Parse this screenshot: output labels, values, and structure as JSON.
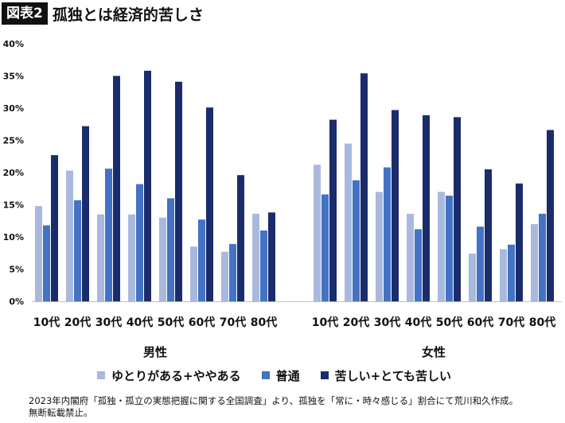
{
  "header": {
    "figure_label": "図表2",
    "title": "孤独とは経済的苦しさ"
  },
  "colors": {
    "low": "#a9b9de",
    "mid": "#4472c4",
    "high": "#1a2c6b"
  },
  "chart_data": {
    "type": "bar",
    "ylim": [
      0,
      40
    ],
    "yticks": [
      "0%",
      "5%",
      "10%",
      "15%",
      "20%",
      "25%",
      "30%",
      "35%",
      "40%"
    ],
    "grid": false,
    "legend_position": "bottom",
    "groups": [
      {
        "label": "男性",
        "categories": [
          "10代",
          "20代",
          "30代",
          "40代",
          "50代",
          "60代",
          "70代",
          "80代"
        ],
        "series": [
          {
            "name": "ゆとりがある+ややある",
            "values": [
              14.8,
              20.3,
              13.5,
              13.5,
              13.0,
              8.5,
              7.7,
              13.6
            ]
          },
          {
            "name": "普通",
            "values": [
              11.8,
              15.7,
              20.6,
              18.2,
              16.0,
              12.7,
              8.9,
              11.0
            ]
          },
          {
            "name": "苦しい+とても苦しい",
            "values": [
              22.7,
              27.2,
              35.0,
              35.8,
              34.1,
              30.1,
              19.6,
              13.8
            ]
          }
        ]
      },
      {
        "label": "女性",
        "categories": [
          "10代",
          "20代",
          "30代",
          "40代",
          "50代",
          "60代",
          "70代",
          "80代"
        ],
        "series": [
          {
            "name": "ゆとりがある+ややある",
            "values": [
              21.2,
              24.5,
              17.0,
              13.6,
              17.0,
              7.4,
              8.1,
              12.0
            ]
          },
          {
            "name": "普通",
            "values": [
              16.6,
              18.8,
              20.8,
              11.2,
              16.4,
              11.6,
              8.8,
              13.6
            ]
          },
          {
            "name": "苦しい+とても苦しい",
            "values": [
              28.2,
              35.4,
              29.7,
              28.9,
              28.6,
              20.5,
              18.3,
              26.6
            ]
          }
        ]
      }
    ]
  },
  "legend": {
    "items": [
      "ゆとりがある+ややある",
      "普通",
      "苦しい+とても苦しい"
    ]
  },
  "footnote": {
    "line1": "2023年内閣府「孤独・孤立の実態把握に関する全国調査」より、孤独を「常に・時々感じる」割合にて荒川和久作成。",
    "line2": "無断転載禁止。"
  }
}
